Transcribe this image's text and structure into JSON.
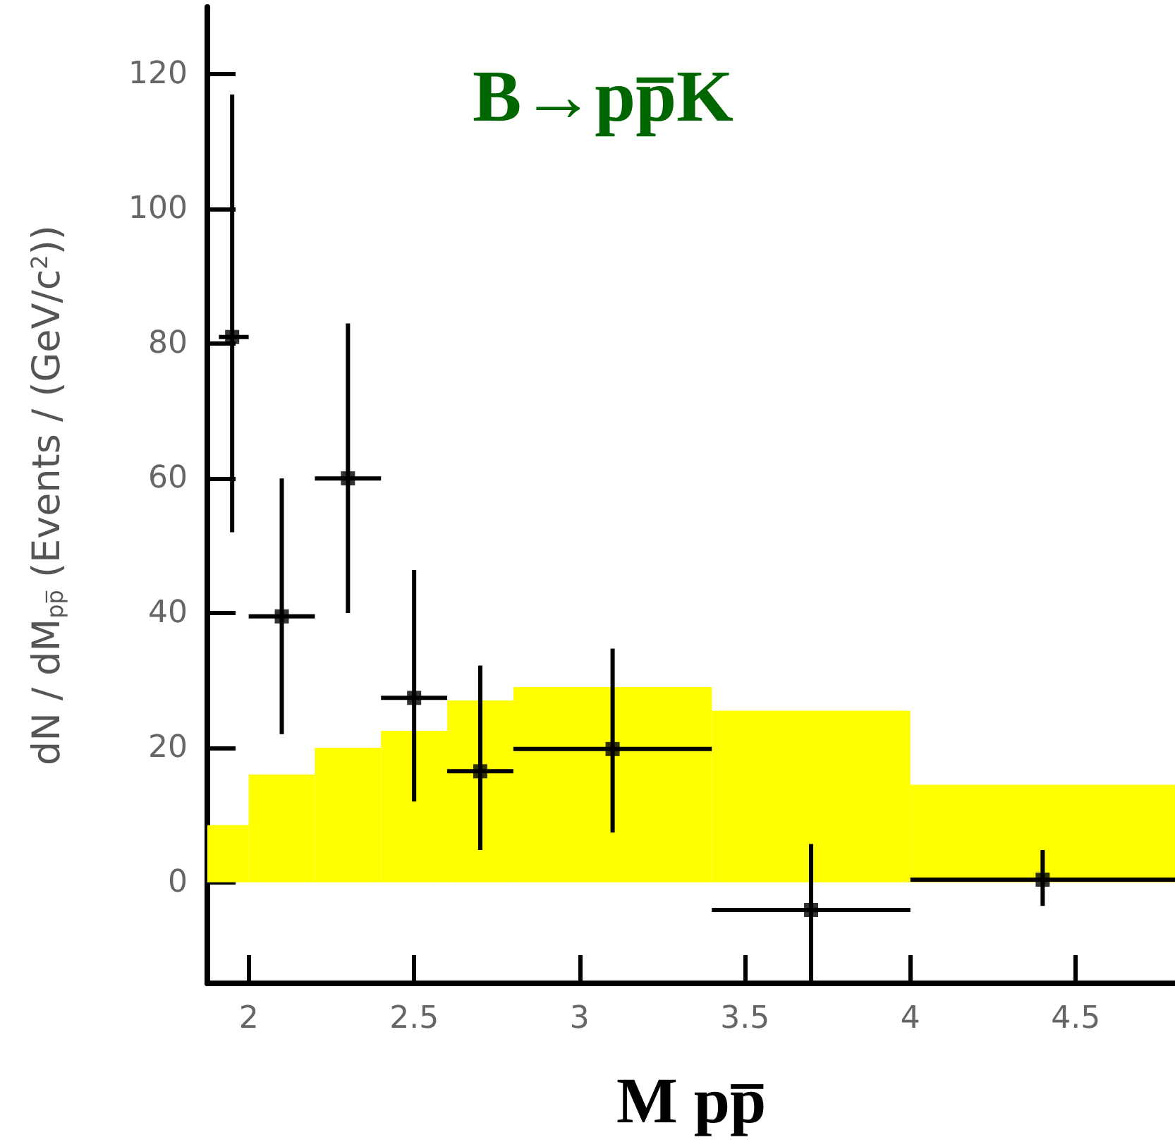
{
  "chart_data": {
    "type": "scatter",
    "title": "B→pp̅K",
    "xlabel": "M pp̅",
    "ylabel": "dN / dM$_{pp̅}$ (Events / (GeV/c$^{2}$))",
    "xlim": [
      1.875,
      4.8
    ],
    "xticks": [
      2,
      2.5,
      3,
      3.5,
      4,
      4.5
    ],
    "ylim": [
      -15,
      130
    ],
    "yticks": [
      0,
      20,
      40,
      60,
      80,
      100,
      120
    ],
    "grid": false,
    "marker": "square",
    "series": [
      {
        "type": "histogram",
        "color": "#ffff00",
        "bins": [
          1.875,
          2.0,
          2.2,
          2.4,
          2.6,
          2.8,
          3.4,
          4.0,
          4.8
        ],
        "values": [
          8.5,
          16,
          20,
          22.5,
          27,
          29,
          25.5,
          14.5
        ]
      },
      {
        "color": "#000000",
        "x": [
          1.95,
          2.1,
          2.3,
          2.5,
          2.7,
          3.1,
          3.7,
          4.4
        ],
        "values": [
          81,
          39.5,
          60,
          27.4,
          16.5,
          19.8,
          -4.1,
          0.4
        ],
        "errors": [
          [
            52,
            117
          ],
          [
            22,
            60
          ],
          [
            40,
            83
          ],
          [
            12,
            46.4
          ],
          [
            4.8,
            32.2
          ],
          [
            7.4,
            34.7
          ],
          [
            -15,
            5.7
          ],
          [
            -3.5,
            4.8
          ]
        ],
        "xerrors": [
          [
            1.91,
            2.0
          ],
          [
            2.0,
            2.2
          ],
          [
            2.2,
            2.4
          ],
          [
            2.4,
            2.6
          ],
          [
            2.6,
            2.8
          ],
          [
            2.8,
            3.4
          ],
          [
            3.4,
            4.0
          ],
          [
            4.0,
            4.8
          ]
        ]
      }
    ]
  }
}
